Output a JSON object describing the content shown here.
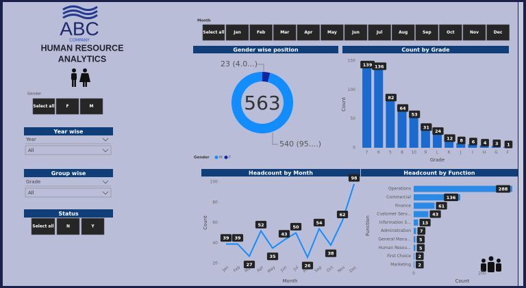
{
  "header": {
    "logo": "ABC",
    "logo_sub": "COMPANY",
    "title_line1": "HUMAN RESOURCE",
    "title_line2": "ANALYTICS"
  },
  "slicers": {
    "gender": {
      "label": "Gender",
      "options": [
        "Select all",
        "F",
        "M"
      ]
    },
    "year": {
      "title": "Year wise",
      "field": "Year",
      "value": "All"
    },
    "group": {
      "title": "Group wise",
      "field": "Grade",
      "value": "All"
    },
    "status": {
      "title": "Status",
      "options": [
        "Select all",
        "N",
        "Y"
      ]
    },
    "month": {
      "label": "Month",
      "options": [
        "Select all",
        "Jan",
        "Feb",
        "Mar",
        "Apr",
        "May",
        "Jun",
        "Jul",
        "Aug",
        "Sep",
        "Oct",
        "Nov",
        "Dec"
      ]
    }
  },
  "chart_data": [
    {
      "type": "pie",
      "title": "Gender wise position",
      "categories": [
        "M",
        "F"
      ],
      "values": [
        540,
        23
      ],
      "value_labels": [
        "540 (95....)",
        "23 (4.0...)"
      ],
      "colors": [
        "#118dff",
        "#12239e"
      ],
      "total": 563,
      "legend_title": "Gender"
    },
    {
      "type": "bar",
      "title": "Count by Grade",
      "x_label": "Grade",
      "y_label": "Count",
      "categories": [
        "7",
        "6",
        "5",
        "8",
        "10",
        "9",
        "L",
        "K",
        "J",
        "I",
        "H",
        "G",
        "F"
      ],
      "values": [
        139,
        136,
        82,
        64,
        53,
        31,
        24,
        12,
        8,
        6,
        4,
        3,
        1
      ],
      "color": "#1a6ad0",
      "ylim": [
        0,
        150
      ],
      "yticks": [
        0,
        50,
        100,
        150
      ]
    },
    {
      "type": "line",
      "title": "Headcount by Month",
      "x_label": "Month",
      "y_label": "Count",
      "categories": [
        "Jan",
        "Feb",
        "Mar",
        "Apr",
        "May",
        "Jun",
        "Jul",
        "Aug",
        "Sep",
        "Oct",
        "Nov",
        "Dec"
      ],
      "values": [
        39,
        39,
        27,
        52,
        35,
        43,
        50,
        26,
        54,
        38,
        62,
        98
      ],
      "color": "#118dff",
      "ylim": [
        20,
        100
      ],
      "yticks": [
        20,
        40,
        60,
        80,
        100
      ]
    },
    {
      "type": "hbar",
      "title": "Headcount by Function",
      "x_label": "Count",
      "y_label": "Function",
      "categories": [
        "Operations",
        "Commercial",
        "Finance",
        "Customer Serv...",
        "Information S...",
        "Administration",
        "General Mana...",
        "Human Resou...",
        "First Choice",
        "Marketing"
      ],
      "values": [
        288,
        136,
        61,
        43,
        13,
        7,
        5,
        5,
        2,
        2
      ],
      "color": "#2b8ae6",
      "xlim": [
        0,
        300
      ],
      "xticks": [
        0,
        200
      ]
    }
  ]
}
